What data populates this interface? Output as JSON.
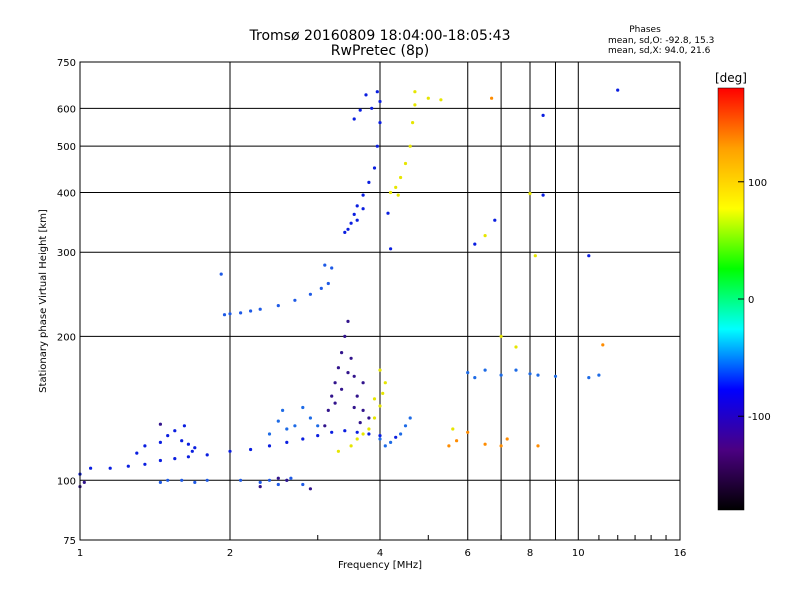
{
  "chart_data": {
    "type": "scatter",
    "title": "Tromsø 20160809 18:04:00-18:05:43",
    "subtitle": "RwPretec (8p)",
    "xlabel": "Frequency [MHz]",
    "ylabel": "Stationary phase Virtual Height [km]",
    "x_scale": "log2",
    "y_scale": "log",
    "xlim": [
      1,
      16
    ],
    "ylim": [
      75,
      750
    ],
    "x_ticks": [
      1,
      2,
      4,
      6,
      8,
      10,
      16
    ],
    "x_gridlines": [
      2,
      4,
      6,
      7,
      8,
      9,
      10
    ],
    "y_ticks": [
      75,
      100,
      200,
      300,
      400,
      500,
      600,
      750
    ],
    "y_gridlines": [
      100,
      200,
      300,
      400,
      500,
      600
    ],
    "grid": true,
    "legend_title": "Phases",
    "legend_lines": [
      "mean, sd,O: -92.8, 15.3",
      "mean, sd,X:  94.0, 21.6"
    ],
    "colorbar": {
      "label": "[deg]",
      "range": [
        -180,
        180
      ],
      "ticks": [
        100,
        0,
        -100
      ],
      "colors": [
        "#ff0000",
        "#ffa000",
        "#ffff00",
        "#00ff00",
        "#00ffff",
        "#0000ff",
        "#4b0082",
        "#000000"
      ]
    },
    "series": [
      {
        "color": "#0a1ee0",
        "points": [
          [
            1.0,
            103
          ],
          [
            1.05,
            106
          ],
          [
            1.15,
            106
          ],
          [
            1.25,
            107
          ],
          [
            1.35,
            108
          ],
          [
            1.45,
            110
          ],
          [
            1.55,
            111
          ],
          [
            1.65,
            112
          ],
          [
            1.8,
            113
          ],
          [
            2.0,
            115
          ],
          [
            2.2,
            116
          ],
          [
            2.4,
            118
          ],
          [
            2.6,
            120
          ],
          [
            2.8,
            122
          ],
          [
            3.0,
            124
          ],
          [
            3.2,
            126
          ],
          [
            3.4,
            127
          ],
          [
            3.6,
            126
          ],
          [
            3.8,
            125
          ],
          [
            4.0,
            124
          ],
          [
            4.3,
            123
          ]
        ]
      },
      {
        "color": "#0a1ee0",
        "points": [
          [
            1.35,
            118
          ],
          [
            1.45,
            120
          ],
          [
            1.55,
            127
          ],
          [
            1.6,
            121
          ],
          [
            1.65,
            119
          ],
          [
            1.7,
            117
          ],
          [
            1.3,
            114
          ],
          [
            1.5,
            124
          ],
          [
            1.62,
            130
          ],
          [
            1.68,
            115
          ]
        ]
      },
      {
        "color": "#1e5ae6",
        "points": [
          [
            1.45,
            99
          ],
          [
            1.5,
            100
          ],
          [
            1.6,
            100
          ],
          [
            1.7,
            99
          ],
          [
            1.8,
            100
          ],
          [
            2.1,
            100
          ],
          [
            2.3,
            99
          ],
          [
            2.4,
            100
          ],
          [
            2.5,
            98
          ],
          [
            2.6,
            100
          ],
          [
            2.65,
            101
          ],
          [
            2.8,
            98
          ]
        ]
      },
      {
        "color": "#1e5ae6",
        "points": [
          [
            1.95,
            222
          ],
          [
            2.0,
            223
          ],
          [
            2.1,
            224
          ],
          [
            2.2,
            226
          ],
          [
            2.3,
            228
          ],
          [
            2.5,
            232
          ],
          [
            2.7,
            238
          ],
          [
            2.9,
            245
          ],
          [
            3.05,
            252
          ],
          [
            3.15,
            258
          ],
          [
            3.2,
            278
          ],
          [
            3.1,
            282
          ],
          [
            1.92,
            270
          ]
        ]
      },
      {
        "color": "#32148c",
        "points": [
          [
            3.1,
            130
          ],
          [
            3.15,
            140
          ],
          [
            3.2,
            150
          ],
          [
            3.25,
            160
          ],
          [
            3.3,
            172
          ],
          [
            3.35,
            185
          ],
          [
            3.4,
            200
          ],
          [
            3.45,
            215
          ],
          [
            3.5,
            180
          ],
          [
            3.55,
            165
          ],
          [
            3.6,
            150
          ],
          [
            3.7,
            140
          ],
          [
            3.8,
            135
          ],
          [
            3.25,
            145
          ],
          [
            3.35,
            155
          ],
          [
            3.45,
            168
          ],
          [
            3.55,
            142
          ],
          [
            3.65,
            132
          ],
          [
            3.7,
            160
          ]
        ]
      },
      {
        "color": "#1e6be6",
        "points": [
          [
            2.4,
            125
          ],
          [
            2.5,
            133
          ],
          [
            2.55,
            140
          ],
          [
            2.6,
            128
          ],
          [
            2.7,
            130
          ],
          [
            2.8,
            142
          ],
          [
            2.9,
            135
          ],
          [
            3.0,
            130
          ]
        ]
      },
      {
        "color": "#0a1ee0",
        "points": [
          [
            3.4,
            330
          ],
          [
            3.5,
            345
          ],
          [
            3.55,
            360
          ],
          [
            3.6,
            375
          ],
          [
            3.7,
            395
          ],
          [
            3.8,
            420
          ],
          [
            3.9,
            450
          ],
          [
            3.95,
            500
          ],
          [
            4.0,
            560
          ],
          [
            4.0,
            620
          ],
          [
            3.95,
            650
          ],
          [
            3.85,
            600
          ],
          [
            3.75,
            640
          ],
          [
            3.65,
            595
          ],
          [
            3.55,
            570
          ],
          [
            3.45,
            335
          ],
          [
            3.6,
            350
          ],
          [
            3.7,
            370
          ]
        ]
      },
      {
        "color": "#e6e600",
        "points": [
          [
            4.2,
            400
          ],
          [
            4.3,
            410
          ],
          [
            4.4,
            430
          ],
          [
            4.5,
            460
          ],
          [
            4.6,
            500
          ],
          [
            4.65,
            560
          ],
          [
            4.7,
            610
          ],
          [
            4.7,
            650
          ],
          [
            4.35,
            395
          ]
        ]
      },
      {
        "color": "#e6e600",
        "points": [
          [
            3.3,
            115
          ],
          [
            3.5,
            118
          ],
          [
            3.6,
            122
          ],
          [
            3.8,
            128
          ],
          [
            3.9,
            135
          ],
          [
            4.0,
            143
          ],
          [
            4.05,
            152
          ],
          [
            4.1,
            160
          ],
          [
            4.0,
            170
          ],
          [
            3.9,
            148
          ],
          [
            3.7,
            125
          ]
        ]
      },
      {
        "color": "#1e6be6",
        "points": [
          [
            4.4,
            125
          ],
          [
            4.5,
            130
          ],
          [
            4.6,
            135
          ],
          [
            4.2,
            120
          ],
          [
            4.0,
            122
          ],
          [
            4.1,
            118
          ]
        ]
      },
      {
        "color": "#1e6be6",
        "points": [
          [
            6.0,
            168
          ],
          [
            6.2,
            164
          ],
          [
            6.5,
            170
          ],
          [
            7.0,
            166
          ],
          [
            8.0,
            167
          ],
          [
            8.3,
            166
          ],
          [
            9.0,
            165
          ],
          [
            10.5,
            164
          ],
          [
            11.0,
            166
          ],
          [
            7.5,
            170
          ]
        ]
      },
      {
        "color": "#ff8c00",
        "points": [
          [
            5.5,
            118
          ],
          [
            5.7,
            121
          ],
          [
            6.0,
            126
          ],
          [
            6.5,
            119
          ],
          [
            7.0,
            118
          ],
          [
            7.2,
            122
          ],
          [
            8.3,
            118
          ],
          [
            11.2,
            192
          ],
          [
            6.7,
            630
          ]
        ]
      },
      {
        "color": "#e6e600",
        "points": [
          [
            5.0,
            630
          ],
          [
            5.3,
            625
          ],
          [
            8.0,
            398
          ],
          [
            6.5,
            325
          ],
          [
            7.0,
            200
          ],
          [
            7.5,
            190
          ],
          [
            8.2,
            295
          ],
          [
            5.6,
            128
          ]
        ]
      },
      {
        "color": "#0a1ee0",
        "points": [
          [
            8.5,
            580
          ],
          [
            8.5,
            395
          ],
          [
            10.5,
            295
          ],
          [
            12.0,
            655
          ],
          [
            6.8,
            350
          ],
          [
            6.2,
            312
          ],
          [
            4.2,
            305
          ],
          [
            4.15,
            362
          ]
        ]
      },
      {
        "color": "#32148c",
        "points": [
          [
            2.5,
            101
          ],
          [
            2.6,
            100
          ],
          [
            2.3,
            97
          ],
          [
            2.9,
            96
          ],
          [
            1.0,
            97
          ],
          [
            1.02,
            99
          ],
          [
            1.45,
            131
          ]
        ]
      }
    ]
  }
}
